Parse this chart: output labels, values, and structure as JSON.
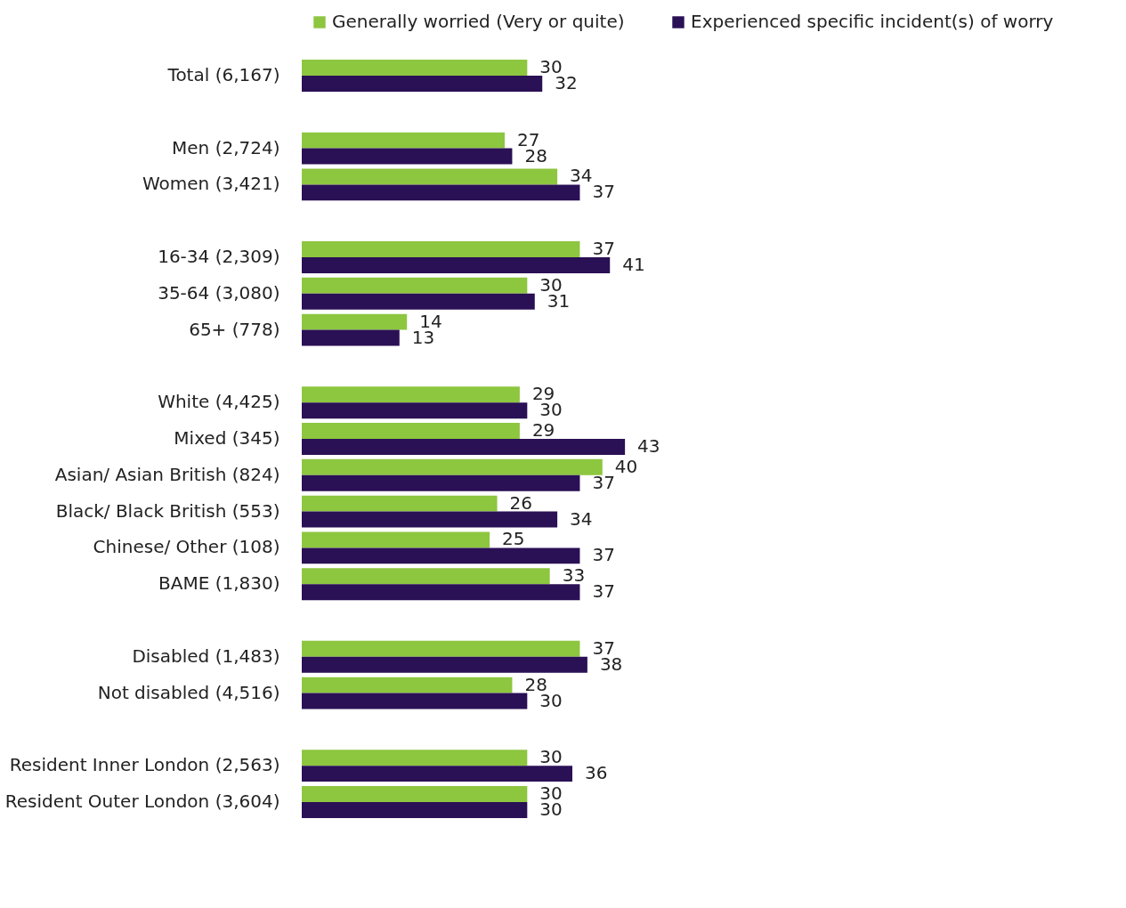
{
  "chart_data": {
    "type": "bar",
    "orientation": "horizontal",
    "categories": [
      "Total (6,167)",
      null,
      "Men (2,724)",
      "Women (3,421)",
      null,
      "16-34 (2,309)",
      "35-64 (3,080)",
      "65+ (778)",
      null,
      "White (4,425)",
      "Mixed (345)",
      "Asian/ Asian British (824)",
      "Black/ Black British (553)",
      "Chinese/ Other (108)",
      "BAME (1,830)",
      null,
      "Disabled (1,483)",
      "Not disabled (4,516)",
      null,
      "Resident Inner London (2,563)",
      "Resident Outer London (3,604)"
    ],
    "series": [
      {
        "name": "Generally worried (Very or quite)",
        "color": "#8dc63f",
        "values": [
          30,
          null,
          27,
          34,
          null,
          37,
          30,
          14,
          null,
          29,
          29,
          40,
          26,
          25,
          33,
          null,
          37,
          28,
          null,
          30,
          30
        ]
      },
      {
        "name": "Experienced specific incident(s) of worry",
        "color": "#2a1055",
        "values": [
          32,
          null,
          28,
          37,
          null,
          41,
          31,
          13,
          null,
          30,
          43,
          37,
          34,
          37,
          37,
          null,
          38,
          30,
          null,
          36,
          30
        ]
      }
    ],
    "tick_labels": "y",
    "data_labels": true,
    "legend": "top"
  }
}
